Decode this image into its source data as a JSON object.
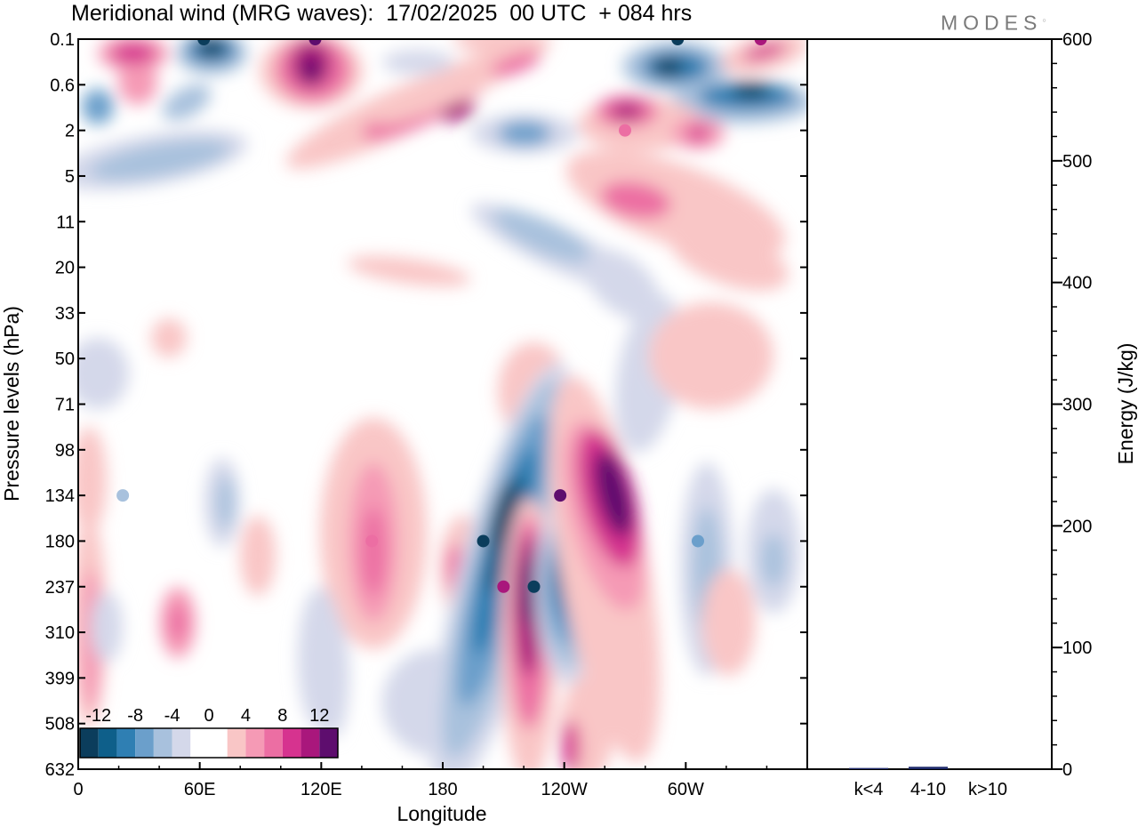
{
  "header": {
    "title": "Meridional wind (MRG waves):  17/02/2025  00 UTC  + 084 hrs",
    "logo": "MODES"
  },
  "chart_data": [
    {
      "type": "heatmap",
      "title": "Meridional wind (MRG waves):  17/02/2025  00 UTC  + 084 hrs",
      "xlabel": "Longitude",
      "ylabel": "Pressure levels (hPa)",
      "x_ticks": [
        "0",
        "60E",
        "120E",
        "180",
        "120W",
        "60W"
      ],
      "y_ticks": [
        "0.1",
        "0.6",
        "2",
        "5",
        "11",
        "20",
        "33",
        "50",
        "71",
        "98",
        "134",
        "180",
        "237",
        "310",
        "399",
        "508",
        "632"
      ],
      "colorbar": {
        "tick_labels": [
          "-12",
          "-8",
          "-4",
          "0",
          "4",
          "8",
          "12"
        ],
        "levels": [
          -14,
          -12,
          -10,
          -8,
          -6,
          -4,
          -2,
          2,
          4,
          6,
          8,
          10,
          12,
          14
        ],
        "colors": [
          "#0b3d5c",
          "#0e5f8a",
          "#2f7fb3",
          "#6b9fcb",
          "#a8c1dd",
          "#d4d8ea",
          "#ffffff",
          "#ffffff",
          "#f9c6c6",
          "#f59ab5",
          "#ec6ea3",
          "#d6338f",
          "#a9177c",
          "#5e0d6e"
        ]
      },
      "features": [
        {
          "lon": 22,
          "level": 134,
          "value": -6
        },
        {
          "lon": 200,
          "level": 180,
          "value": -14
        },
        {
          "lon": 210,
          "level": 237,
          "value": 13
        },
        {
          "lon": 225,
          "level": 237,
          "value": -14
        },
        {
          "lon": 238,
          "level": 134,
          "value": 14
        },
        {
          "lon": 306,
          "level": 180,
          "value": -7
        },
        {
          "lon": 145,
          "level": 180,
          "value": 8
        },
        {
          "lon": 62,
          "level": 0.1,
          "value": -13
        },
        {
          "lon": 117,
          "level": 0.1,
          "value": 14
        },
        {
          "lon": 296,
          "level": 0.1,
          "value": -13
        },
        {
          "lon": 337,
          "level": 0.1,
          "value": 12
        },
        {
          "lon": 270,
          "level": 2,
          "value": 9
        }
      ]
    },
    {
      "type": "bar",
      "categories": [
        "k<4",
        "4-10",
        "k>10"
      ],
      "values": [
        1,
        2,
        0
      ],
      "ylabel": "Energy (J/kg)",
      "ylim": [
        0,
        600
      ],
      "y_ticks": [
        "0",
        "100",
        "200",
        "300",
        "400",
        "500",
        "600"
      ],
      "bar_color": "#1f2a6b"
    }
  ]
}
